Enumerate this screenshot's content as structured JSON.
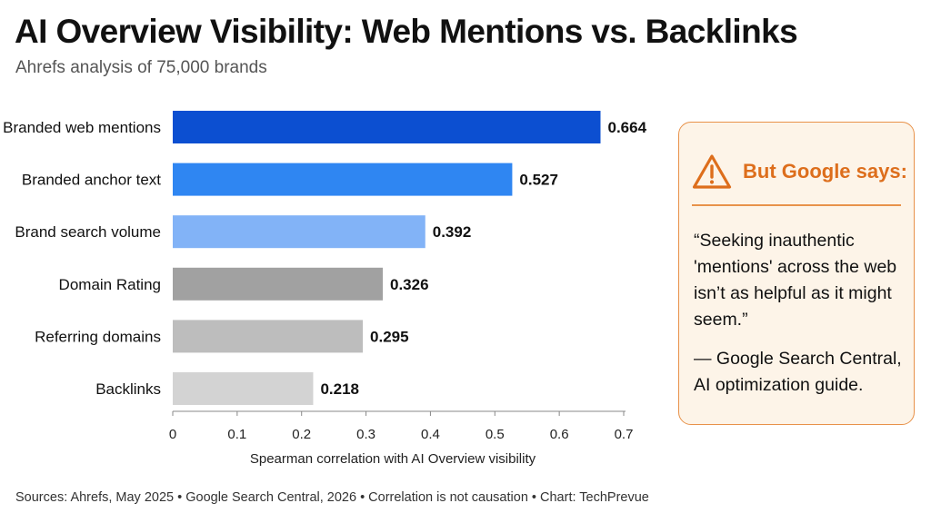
{
  "header": {
    "title": "AI Overview Visibility: Web Mentions vs. Backlinks",
    "subtitle": "Ahrefs analysis of 75,000 brands"
  },
  "chart_data": {
    "type": "bar",
    "orientation": "horizontal",
    "title": "AI Overview Visibility: Web Mentions vs. Backlinks",
    "subtitle": "Ahrefs analysis of 75,000 brands",
    "categories": [
      "Branded web mentions",
      "Branded anchor text",
      "Brand search volume",
      "Domain Rating",
      "Referring domains",
      "Backlinks"
    ],
    "values": [
      0.664,
      0.527,
      0.392,
      0.326,
      0.295,
      0.218
    ],
    "value_labels": [
      "0.664",
      "0.527",
      "0.392",
      "0.326",
      "0.295",
      "0.218"
    ],
    "bar_colors": [
      "#0c4fd1",
      "#2f86f2",
      "#82b3f7",
      "#a1a1a1",
      "#bdbdbd",
      "#d3d3d3"
    ],
    "xlabel": "Spearman correlation with AI Overview visibility",
    "ylabel": "",
    "xlim": [
      0,
      0.7
    ],
    "ticks": [
      "0",
      "0.1",
      "0.2",
      "0.3",
      "0.4",
      "0.5",
      "0.6",
      "0.7"
    ],
    "grid": false,
    "legend": "none"
  },
  "callout": {
    "icon": "warning-icon",
    "heading": "But Google says:",
    "quote": "“Seeking inauthentic 'mentions' across the web isn’t as helpful as it might seem.”",
    "attribution": "— Google Search Central, AI optimization guide.",
    "accent_color": "#dd6e1c",
    "background_color": "#fdf4e8"
  },
  "footer": {
    "sources": "Sources: Ahrefs, May 2025  •  Google Search Central, 2026  •  Correlation is not causation  •  Chart: TechPrevue"
  }
}
